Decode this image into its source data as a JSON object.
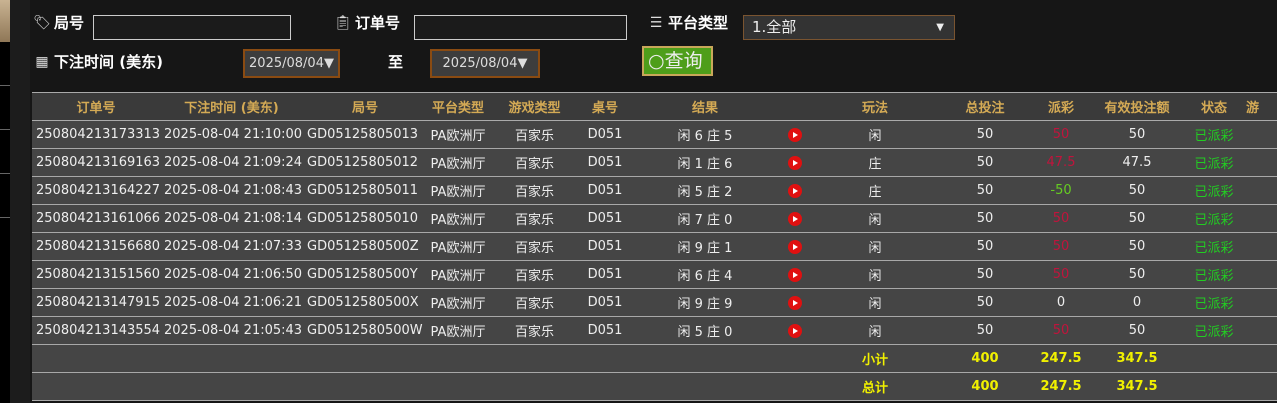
{
  "filters": {
    "round_label": "局号",
    "round_value": "",
    "order_label": "订单号",
    "order_value": "",
    "platform_label": "平台类型",
    "platform_value": "1.全部",
    "time_label": "下注时间 (美东)",
    "date_from": "2025/08/04▼",
    "to_label": "至",
    "date_to": "2025/08/04▼",
    "query_label": "查询"
  },
  "table": {
    "headers": [
      "订单号",
      "下注时间 (美东)",
      "局号",
      "平台类型",
      "游戏类型",
      "桌号",
      "结果",
      "",
      "玩法",
      "总投注",
      "派彩",
      "有效投注额",
      "状态",
      "游"
    ],
    "rows": [
      [
        "250804213173313",
        "2025-08-04 21:10:00",
        "GD05125805013",
        "PA欧洲厅",
        "百家乐",
        "D051",
        "闲 6 庄 5",
        "闲",
        "50",
        "50",
        "50",
        "已派彩"
      ],
      [
        "250804213169163",
        "2025-08-04 21:09:24",
        "GD05125805012",
        "PA欧洲厅",
        "百家乐",
        "D051",
        "闲 1 庄 6",
        "庄",
        "50",
        "47.5",
        "47.5",
        "已派彩"
      ],
      [
        "250804213164227",
        "2025-08-04 21:08:43",
        "GD05125805011",
        "PA欧洲厅",
        "百家乐",
        "D051",
        "闲 5 庄 2",
        "庄",
        "50",
        "-50",
        "50",
        "已派彩"
      ],
      [
        "250804213161066",
        "2025-08-04 21:08:14",
        "GD05125805010",
        "PA欧洲厅",
        "百家乐",
        "D051",
        "闲 7 庄 0",
        "闲",
        "50",
        "50",
        "50",
        "已派彩"
      ],
      [
        "250804213156680",
        "2025-08-04 21:07:33",
        "GD0512580500Z",
        "PA欧洲厅",
        "百家乐",
        "D051",
        "闲 9 庄 1",
        "闲",
        "50",
        "50",
        "50",
        "已派彩"
      ],
      [
        "250804213151560",
        "2025-08-04 21:06:50",
        "GD0512580500Y",
        "PA欧洲厅",
        "百家乐",
        "D051",
        "闲 6 庄 4",
        "闲",
        "50",
        "50",
        "50",
        "已派彩"
      ],
      [
        "250804213147915",
        "2025-08-04 21:06:21",
        "GD0512580500X",
        "PA欧洲厅",
        "百家乐",
        "D051",
        "闲 9 庄 9",
        "闲",
        "50",
        "0",
        "0",
        "已派彩"
      ],
      [
        "250804213143554",
        "2025-08-04 21:05:43",
        "GD0512580500W",
        "PA欧洲厅",
        "百家乐",
        "D051",
        "闲 5 庄 0",
        "闲",
        "50",
        "50",
        "50",
        "已派彩"
      ]
    ],
    "payout_colors": [
      "red",
      "red",
      "green",
      "red",
      "red",
      "red",
      "white",
      "red"
    ],
    "subtotal": {
      "label": "小计",
      "total_bet": "400",
      "payout": "247.5",
      "valid_bet": "347.5"
    },
    "grand_total": {
      "label": "总计",
      "total_bet": "400",
      "payout": "247.5",
      "valid_bet": "347.5"
    }
  },
  "colors": {
    "header_text": "#d4aa55",
    "payout_loss": "#c0143c",
    "payout_win": "#66cc22",
    "status": "#22cc22",
    "totals": "#f0f000",
    "query_button": "#4e9e1a"
  }
}
